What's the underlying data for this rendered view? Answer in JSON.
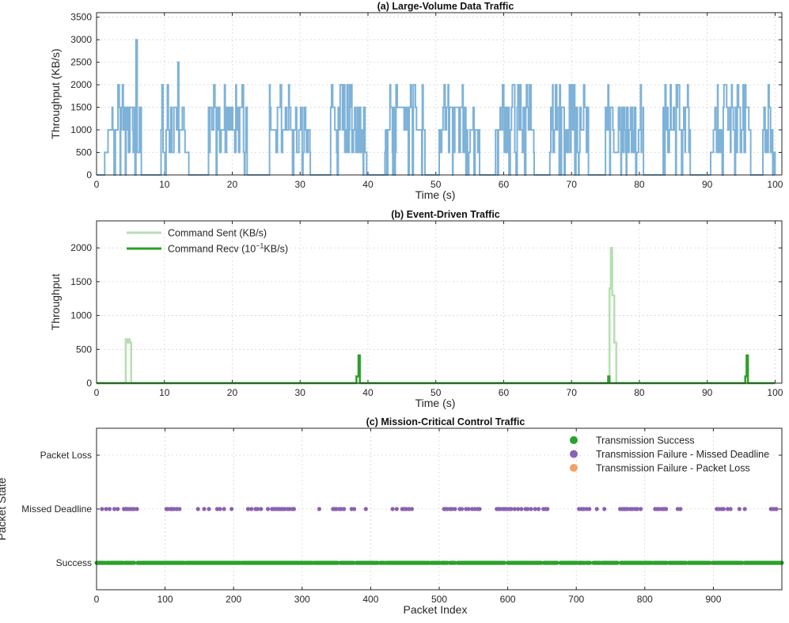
{
  "chart_data": [
    {
      "id": "a",
      "type": "line",
      "title": "(a) Large-Volume Data Traffic",
      "xlabel": "Time (s)",
      "ylabel": "Throughput (KB/s)",
      "xlim": [
        0,
        101
      ],
      "ylim": [
        0,
        3600
      ],
      "xticks": [
        0,
        10,
        20,
        30,
        40,
        50,
        60,
        70,
        80,
        90,
        100
      ],
      "yticks": [
        0,
        500,
        1000,
        1500,
        2000,
        2500,
        3000,
        3500
      ],
      "grid": true,
      "color": "#7eb2d8",
      "bursts": [
        {
          "start": 1.2,
          "end": 6.6,
          "peak": 3000,
          "peak_at": 5.8
        },
        {
          "start": 9.5,
          "end": 13.6,
          "peak": 2500,
          "peak_at": 12.0
        },
        {
          "start": 16.5,
          "end": 22.2,
          "peak": 2000,
          "peak_at": 20.5
        },
        {
          "start": 25.5,
          "end": 31.5,
          "peak": 2000,
          "peak_at": 28.3
        },
        {
          "start": 34.5,
          "end": 39.8,
          "peak": 2000,
          "peak_at": 36.0
        },
        {
          "start": 42.5,
          "end": 48.4,
          "peak": 2000,
          "peak_at": 43.2
        },
        {
          "start": 50.5,
          "end": 56.6,
          "peak": 2000,
          "peak_at": 51.3
        },
        {
          "start": 58.8,
          "end": 64.5,
          "peak": 2000,
          "peak_at": 62.5
        },
        {
          "start": 66.8,
          "end": 72.5,
          "peak": 2000,
          "peak_at": 71.8
        },
        {
          "start": 75.0,
          "end": 80.6,
          "peak": 2000,
          "peak_at": 75.5
        },
        {
          "start": 83.5,
          "end": 87.5,
          "peak": 2000,
          "peak_at": 85.5
        },
        {
          "start": 90.5,
          "end": 96.4,
          "peak": 2000,
          "peak_at": 91.5
        },
        {
          "start": 98.2,
          "end": 100.0,
          "peak": 2000,
          "peak_at": 99.0
        }
      ]
    },
    {
      "id": "b",
      "type": "line",
      "title": "(b) Event-Driven Traffic",
      "xlabel": "Time (s)",
      "ylabel": "Throughput",
      "xlim": [
        0,
        101
      ],
      "ylim": [
        0,
        2400
      ],
      "xticks": [
        0,
        10,
        20,
        30,
        40,
        50,
        60,
        70,
        80,
        90,
        100
      ],
      "yticks": [
        0,
        500,
        1000,
        1500,
        2000
      ],
      "grid": true,
      "legend_position": "top-left",
      "series": [
        {
          "name": "Command Sent (KB/s)",
          "color": "#b6dfb0",
          "points": [
            [
              4.3,
              0
            ],
            [
              4.3,
              650
            ],
            [
              4.5,
              650
            ],
            [
              4.5,
              600
            ],
            [
              4.7,
              600
            ],
            [
              4.7,
              650
            ],
            [
              4.9,
              650
            ],
            [
              4.9,
              600
            ],
            [
              5.1,
              600
            ],
            [
              5.1,
              0
            ],
            [
              75.6,
              0
            ],
            [
              75.6,
              1400
            ],
            [
              75.8,
              1400
            ],
            [
              75.8,
              2000
            ],
            [
              76.0,
              2000
            ],
            [
              76.0,
              1300
            ],
            [
              76.3,
              1300
            ],
            [
              76.3,
              600
            ],
            [
              76.6,
              600
            ],
            [
              76.6,
              0
            ]
          ]
        },
        {
          "name": "Command Recv (10^-1 KB/s)",
          "name_main": "Command Recv (10",
          "name_sup": "−1",
          "name_tail": "KB/s)",
          "color": "#2ca02c",
          "points": [
            [
              38.3,
              0
            ],
            [
              38.3,
              100
            ],
            [
              38.6,
              100
            ],
            [
              38.6,
              410
            ],
            [
              38.8,
              410
            ],
            [
              38.8,
              0
            ],
            [
              75.4,
              0
            ],
            [
              75.4,
              100
            ],
            [
              75.6,
              100
            ],
            [
              75.6,
              0
            ],
            [
              95.6,
              0
            ],
            [
              95.6,
              100
            ],
            [
              95.8,
              100
            ],
            [
              95.8,
              410
            ],
            [
              96.0,
              410
            ],
            [
              96.0,
              0
            ]
          ]
        }
      ]
    },
    {
      "id": "c",
      "type": "scatter",
      "title": "(c) Mission-Critical Control Traffic",
      "xlabel": "Packet Index",
      "ylabel": "Packet State",
      "xlim": [
        0,
        1000
      ],
      "xticks": [
        0,
        100,
        200,
        300,
        400,
        500,
        600,
        700,
        800,
        900
      ],
      "states": [
        "Success",
        "Missed Deadline",
        "Packet Loss"
      ],
      "grid": true,
      "legend_position": "top-right",
      "series": [
        {
          "name": "Transmission Success",
          "color": "#2ca02c",
          "state": "Success",
          "ranges": [
            [
              0,
              12
            ],
            [
              15,
              38
            ],
            [
              41,
              55
            ],
            [
              60,
              128
            ],
            [
              131,
              210
            ],
            [
              213,
              315
            ],
            [
              318,
              352
            ],
            [
              356,
              375
            ],
            [
              379,
              410
            ],
            [
              414,
              420
            ],
            [
              423,
              485
            ],
            [
              488,
              500
            ],
            [
              503,
              512
            ],
            [
              516,
              523
            ],
            [
              527,
              567
            ],
            [
              569,
              590
            ],
            [
              592,
              595
            ],
            [
              600,
              607
            ],
            [
              609,
              649
            ],
            [
              653,
              662
            ],
            [
              664,
              672
            ],
            [
              677,
              700
            ],
            [
              703,
              712
            ],
            [
              715,
              720
            ],
            [
              725,
              735
            ],
            [
              738,
              760
            ],
            [
              765,
              810
            ],
            [
              813,
              832
            ],
            [
              836,
              860
            ],
            [
              864,
              895
            ],
            [
              899,
              942
            ],
            [
              946,
              1000
            ]
          ]
        },
        {
          "name": "Transmission Failure - Missed Deadline",
          "color": "#8a62b0",
          "state": "Missed Deadline",
          "points": [
            8,
            14,
            19,
            26,
            31,
            40,
            42,
            44,
            46,
            49,
            52,
            55,
            59,
            102,
            104,
            108,
            110,
            113,
            117,
            121,
            148,
            157,
            164,
            176,
            180,
            186,
            197,
            221,
            226,
            232,
            235,
            240,
            250,
            256,
            258,
            261,
            264,
            267,
            270,
            272,
            275,
            279,
            282,
            286,
            288,
            325,
            345,
            348,
            350,
            354,
            357,
            361,
            372,
            376,
            393,
            432,
            438,
            446,
            449,
            452,
            456,
            460,
            507,
            509,
            512,
            516,
            519,
            523,
            530,
            533,
            539,
            543,
            548,
            552,
            556,
            559,
            584,
            586,
            589,
            593,
            596,
            598,
            602,
            605,
            610,
            615,
            620,
            626,
            629,
            634,
            640,
            645,
            652,
            655,
            658,
            704,
            708,
            711,
            715,
            719,
            730,
            741,
            764,
            767,
            770,
            772,
            775,
            779,
            782,
            786,
            789,
            794,
            815,
            818,
            821,
            825,
            828,
            831,
            848,
            852,
            905,
            908,
            912,
            915,
            921,
            925,
            938,
            946,
            984,
            986,
            989,
            992
          ]
        },
        {
          "name": "Transmission Failure - Packet Loss",
          "color": "#f0a267",
          "state": "Packet Loss",
          "points": []
        }
      ]
    }
  ]
}
